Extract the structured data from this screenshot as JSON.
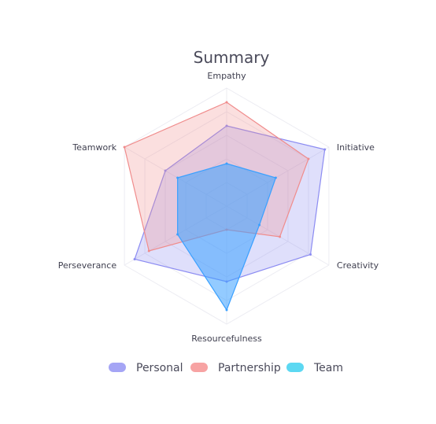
{
  "chart_data": {
    "type": "radar",
    "title": "Summary",
    "axes": [
      "Empathy",
      "Initiative",
      "Creativity",
      "Resourcefulness",
      "Perseverance",
      "Teamwork"
    ],
    "max": 5,
    "grid": true,
    "legend_position": "bottom",
    "series": [
      {
        "name": "Personal",
        "values": [
          3.4,
          4.8,
          4.1,
          3.2,
          4.5,
          3.0
        ],
        "color": "#8c8cf2"
      },
      {
        "name": "Partnership",
        "values": [
          4.4,
          4.0,
          2.6,
          1.0,
          3.8,
          5.0
        ],
        "color": "#f08c8c"
      },
      {
        "name": "Team",
        "values": [
          1.8,
          2.4,
          1.6,
          4.4,
          2.4,
          2.4
        ],
        "color": "#3aa0ff"
      }
    ],
    "legend_colors": [
      "#a5a5f5",
      "#f7a3a3",
      "#5cd8f2"
    ]
  }
}
